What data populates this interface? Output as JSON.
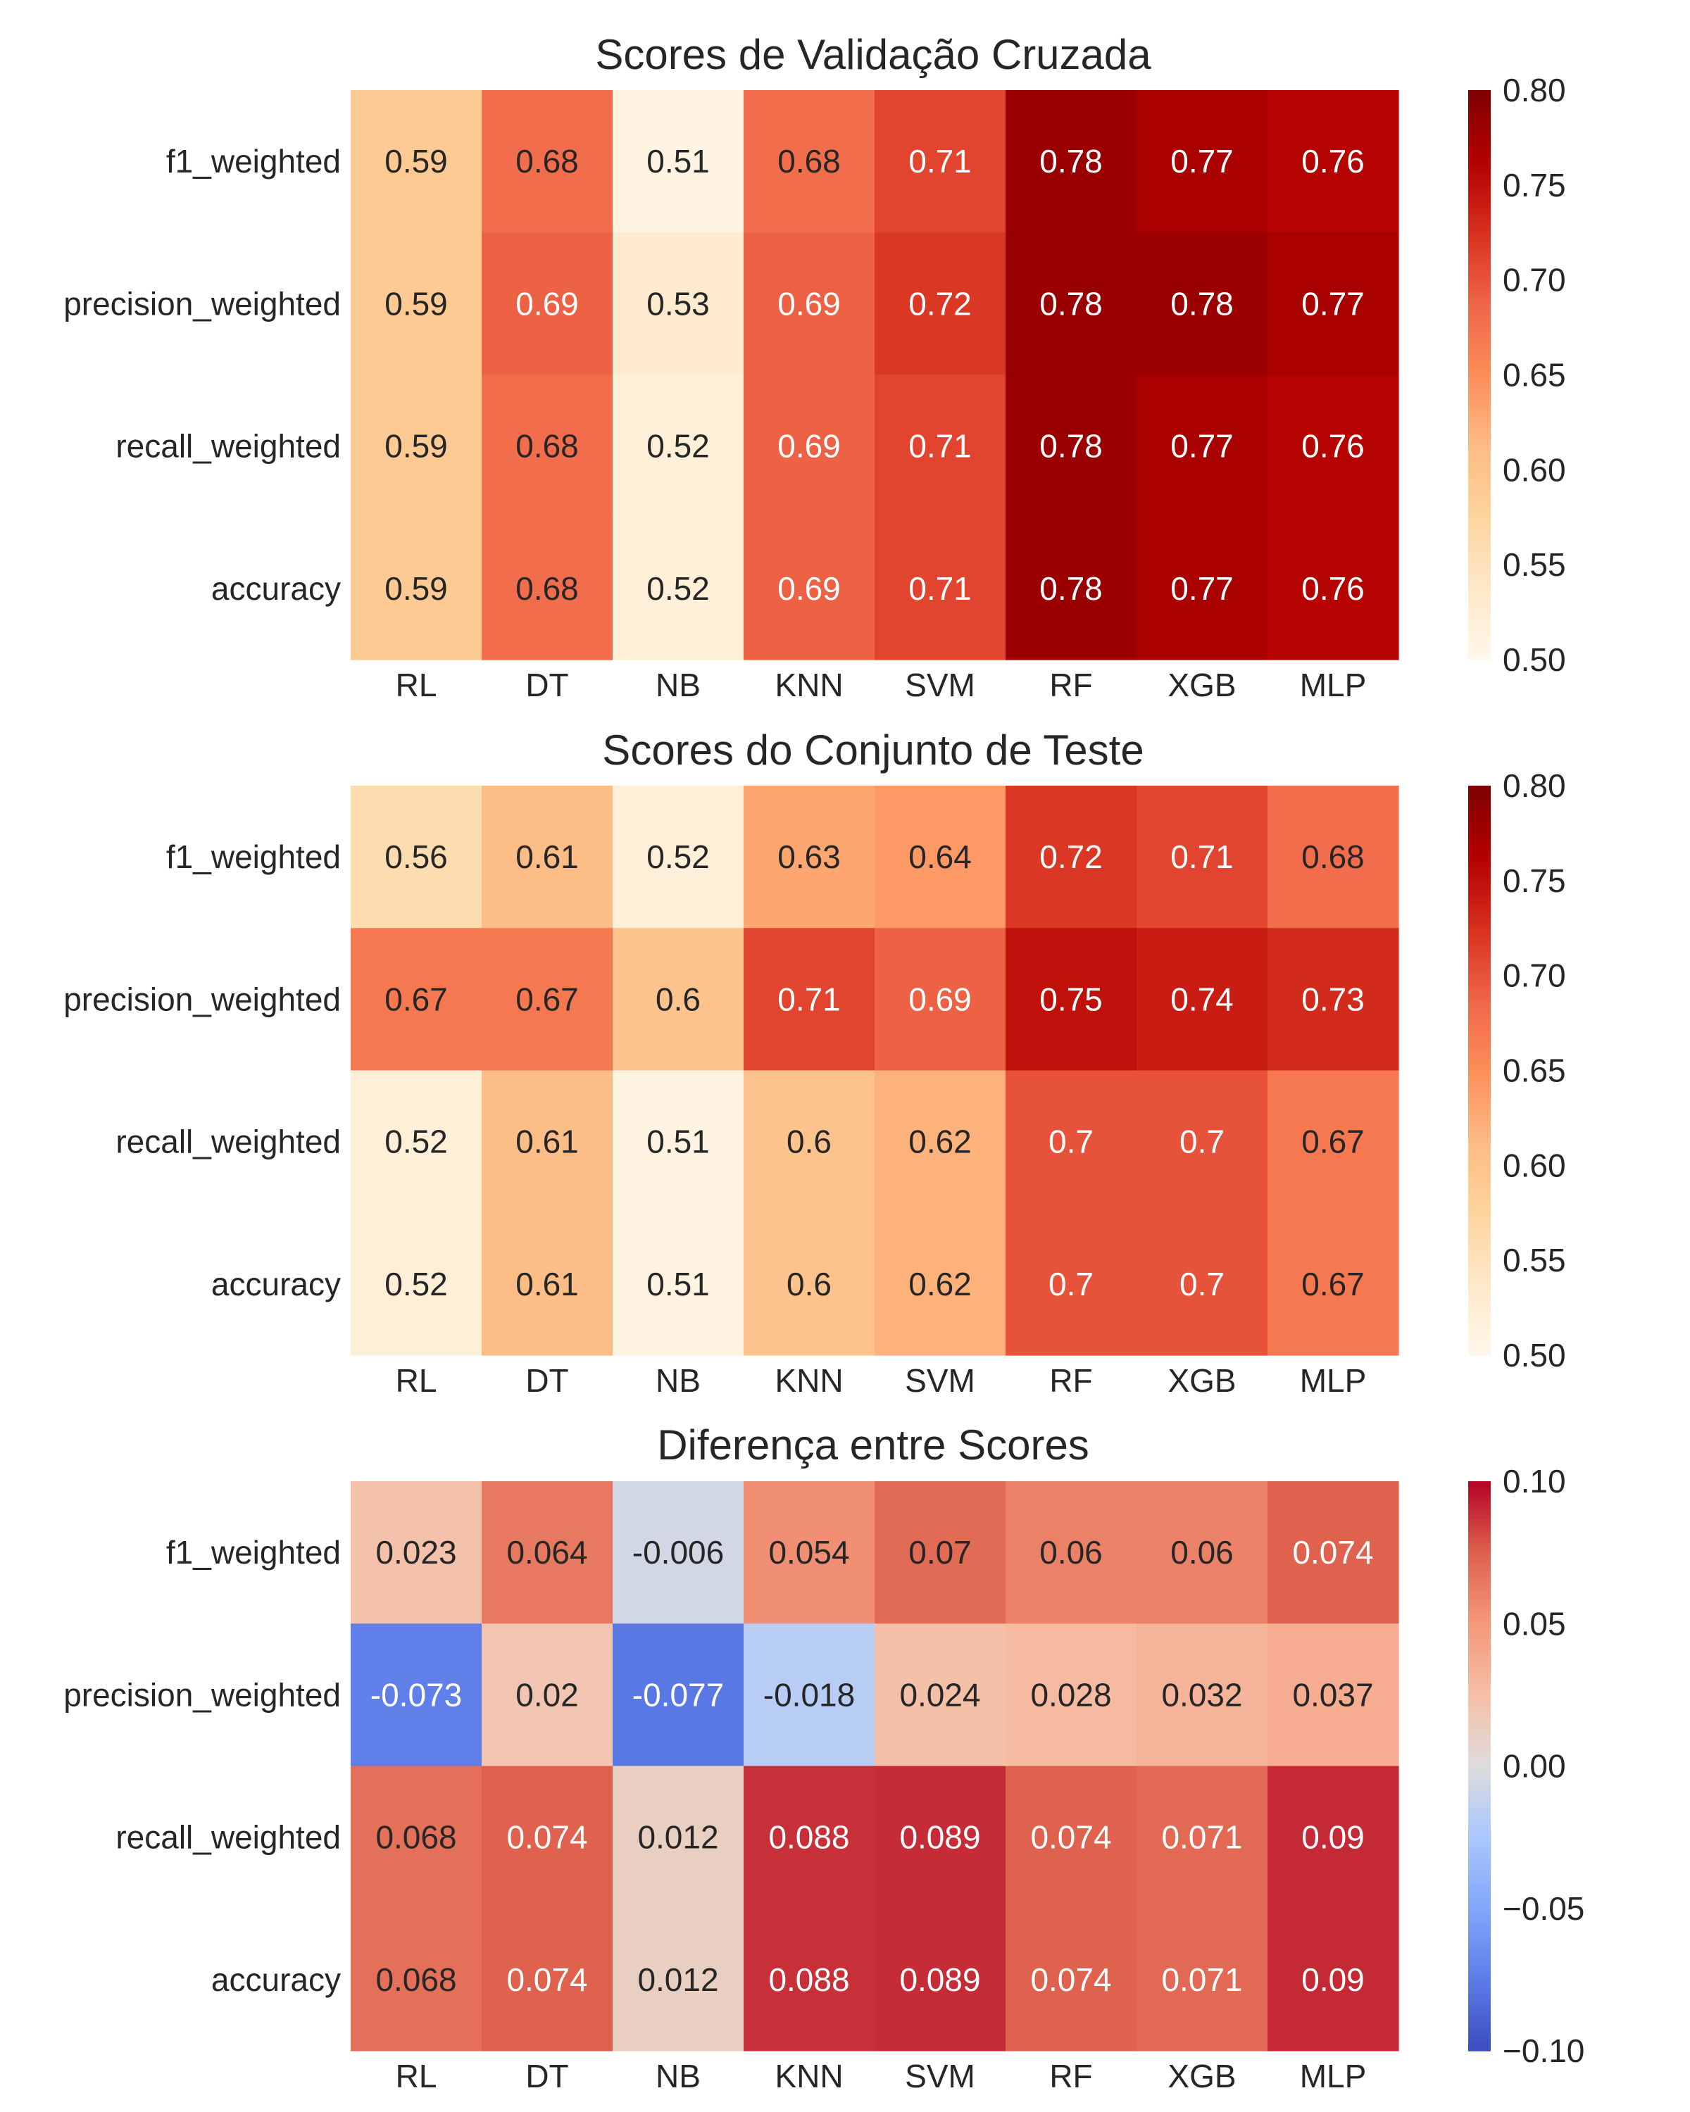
{
  "chart_data": [
    {
      "type": "heatmap",
      "title": "Scores de Validação Cruzada",
      "xlabel": "",
      "ylabel": "",
      "columns": [
        "RL",
        "DT",
        "NB",
        "KNN",
        "SVM",
        "RF",
        "XGB",
        "MLP"
      ],
      "rows": [
        "f1_weighted",
        "precision_weighted",
        "recall_weighted",
        "accuracy"
      ],
      "values": [
        [
          0.59,
          0.68,
          0.51,
          0.68,
          0.71,
          0.78,
          0.77,
          0.76
        ],
        [
          0.59,
          0.69,
          0.53,
          0.69,
          0.72,
          0.78,
          0.78,
          0.77
        ],
        [
          0.59,
          0.68,
          0.52,
          0.69,
          0.71,
          0.78,
          0.77,
          0.76
        ],
        [
          0.59,
          0.68,
          0.52,
          0.69,
          0.71,
          0.78,
          0.77,
          0.76
        ]
      ],
      "labels": [
        [
          "0.59",
          "0.68",
          "0.51",
          "0.68",
          "0.71",
          "0.78",
          "0.77",
          "0.76"
        ],
        [
          "0.59",
          "0.69",
          "0.53",
          "0.69",
          "0.72",
          "0.78",
          "0.78",
          "0.77"
        ],
        [
          "0.59",
          "0.68",
          "0.52",
          "0.69",
          "0.71",
          "0.78",
          "0.77",
          "0.76"
        ],
        [
          "0.59",
          "0.68",
          "0.52",
          "0.69",
          "0.71",
          "0.78",
          "0.77",
          "0.76"
        ]
      ],
      "colormap": "OrRd",
      "vmin": 0.5,
      "vmax": 0.8,
      "colorbar_ticks": [
        "0.50",
        "0.55",
        "0.60",
        "0.65",
        "0.70",
        "0.75",
        "0.80"
      ]
    },
    {
      "type": "heatmap",
      "title": "Scores do Conjunto de Teste",
      "xlabel": "",
      "ylabel": "",
      "columns": [
        "RL",
        "DT",
        "NB",
        "KNN",
        "SVM",
        "RF",
        "XGB",
        "MLP"
      ],
      "rows": [
        "f1_weighted",
        "precision_weighted",
        "recall_weighted",
        "accuracy"
      ],
      "values": [
        [
          0.56,
          0.61,
          0.52,
          0.63,
          0.64,
          0.72,
          0.71,
          0.68
        ],
        [
          0.67,
          0.67,
          0.6,
          0.71,
          0.69,
          0.75,
          0.74,
          0.73
        ],
        [
          0.52,
          0.61,
          0.51,
          0.6,
          0.62,
          0.7,
          0.7,
          0.67
        ],
        [
          0.52,
          0.61,
          0.51,
          0.6,
          0.62,
          0.7,
          0.7,
          0.67
        ]
      ],
      "labels": [
        [
          "0.56",
          "0.61",
          "0.52",
          "0.63",
          "0.64",
          "0.72",
          "0.71",
          "0.68"
        ],
        [
          "0.67",
          "0.67",
          "0.6",
          "0.71",
          "0.69",
          "0.75",
          "0.74",
          "0.73"
        ],
        [
          "0.52",
          "0.61",
          "0.51",
          "0.6",
          "0.62",
          "0.7",
          "0.7",
          "0.67"
        ],
        [
          "0.52",
          "0.61",
          "0.51",
          "0.6",
          "0.62",
          "0.7",
          "0.7",
          "0.67"
        ]
      ],
      "colormap": "OrRd",
      "vmin": 0.5,
      "vmax": 0.8,
      "colorbar_ticks": [
        "0.50",
        "0.55",
        "0.60",
        "0.65",
        "0.70",
        "0.75",
        "0.80"
      ]
    },
    {
      "type": "heatmap",
      "title": "Diferença entre Scores",
      "xlabel": "",
      "ylabel": "",
      "columns": [
        "RL",
        "DT",
        "NB",
        "KNN",
        "SVM",
        "RF",
        "XGB",
        "MLP"
      ],
      "rows": [
        "f1_weighted",
        "precision_weighted",
        "recall_weighted",
        "accuracy"
      ],
      "values": [
        [
          0.023,
          0.064,
          -0.006,
          0.054,
          0.07,
          0.06,
          0.06,
          0.074
        ],
        [
          -0.073,
          0.02,
          -0.077,
          -0.018,
          0.024,
          0.028,
          0.032,
          0.037
        ],
        [
          0.068,
          0.074,
          0.012,
          0.088,
          0.089,
          0.074,
          0.071,
          0.09
        ],
        [
          0.068,
          0.074,
          0.012,
          0.088,
          0.089,
          0.074,
          0.071,
          0.09
        ]
      ],
      "labels": [
        [
          "0.023",
          "0.064",
          "-0.006",
          "0.054",
          "0.07",
          "0.06",
          "0.06",
          "0.074"
        ],
        [
          "-0.073",
          "0.02",
          "-0.077",
          "-0.018",
          "0.024",
          "0.028",
          "0.032",
          "0.037"
        ],
        [
          "0.068",
          "0.074",
          "0.012",
          "0.088",
          "0.089",
          "0.074",
          "0.071",
          "0.09"
        ],
        [
          "0.068",
          "0.074",
          "0.012",
          "0.088",
          "0.089",
          "0.074",
          "0.071",
          "0.09"
        ]
      ],
      "colormap": "coolwarm",
      "vmin": -0.1,
      "vmax": 0.1,
      "colorbar_ticks": [
        "0.10",
        "0.05",
        "0.00",
        "−0.05",
        "−0.10"
      ]
    }
  ]
}
